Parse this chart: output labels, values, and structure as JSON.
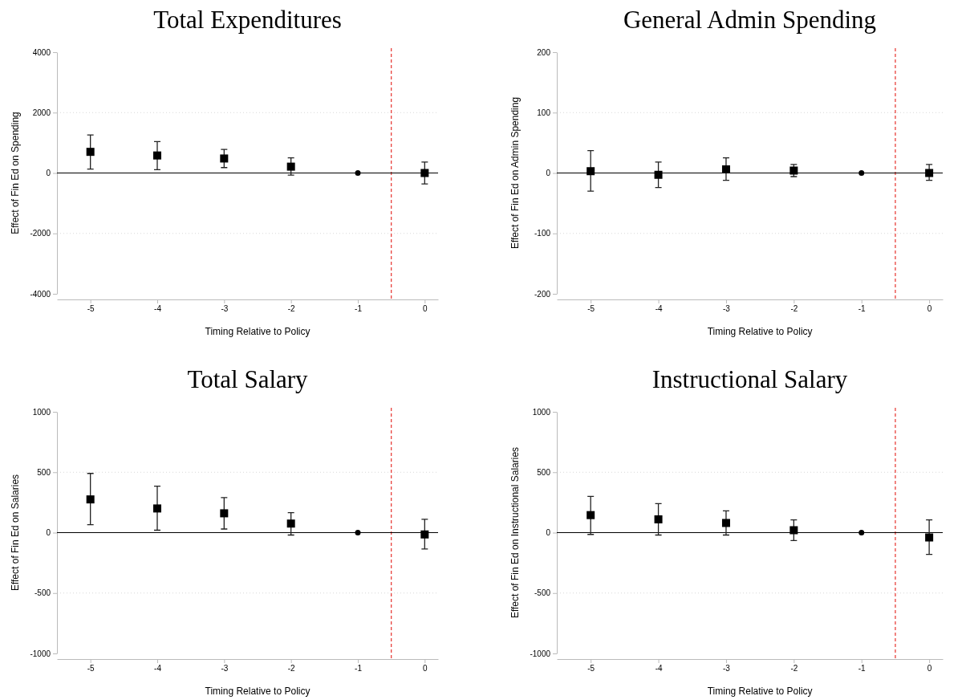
{
  "chart_data": [
    {
      "type": "scatter",
      "title": "Total Expenditures",
      "xlabel": "Timing Relative to Policy",
      "ylabel": "Effect of Fin Ed on Spending",
      "xlim": [
        -5.5,
        0.2
      ],
      "xticks": [
        -5,
        -4,
        -3,
        -2,
        -1,
        0
      ],
      "ylim": [
        -4000,
        4000
      ],
      "yticks": [
        -4000,
        -2000,
        0,
        2000,
        4000
      ],
      "grid": "y",
      "series": [
        {
          "type": "scatter",
          "marker": "square",
          "color": "#000000",
          "x": [
            -5,
            -4,
            -3,
            -2,
            0
          ],
          "values": [
            700,
            580,
            480,
            210,
            0
          ],
          "errors": [
            [
              130,
              1260
            ],
            [
              110,
              1040
            ],
            [
              180,
              780
            ],
            [
              -70,
              500
            ],
            [
              -360,
              360
            ]
          ]
        },
        {
          "type": "scatter",
          "marker": "circle",
          "color": "#000000",
          "x": [
            -1
          ],
          "values": [
            0
          ]
        }
      ],
      "ref_lines": [
        {
          "axis": "x",
          "value": -0.5,
          "color": "#e8413c",
          "line_style": "dashed"
        },
        {
          "axis": "y",
          "value": 0,
          "color": "#000000",
          "line_style": "solid"
        }
      ]
    },
    {
      "type": "scatter",
      "title": "General Admin Spending",
      "xlabel": "Timing Relative to Policy",
      "ylabel": "Effect of Fin Ed on Admin Spending",
      "xlim": [
        -5.5,
        0.2
      ],
      "xticks": [
        -5,
        -4,
        -3,
        -2,
        -1,
        0
      ],
      "ylim": [
        -200,
        200
      ],
      "yticks": [
        -200,
        -100,
        0,
        100,
        200
      ],
      "grid": "y",
      "series": [
        {
          "type": "scatter",
          "marker": "square",
          "color": "#000000",
          "x": [
            -5,
            -4,
            -3,
            -2,
            0
          ],
          "values": [
            3,
            -3,
            6,
            4,
            0
          ],
          "errors": [
            [
              -30,
              37
            ],
            [
              -24,
              18
            ],
            [
              -12,
              25
            ],
            [
              -6,
              14
            ],
            [
              -12,
              14
            ]
          ]
        },
        {
          "type": "scatter",
          "marker": "circle",
          "color": "#000000",
          "x": [
            -1
          ],
          "values": [
            0
          ]
        }
      ],
      "ref_lines": [
        {
          "axis": "x",
          "value": -0.5,
          "color": "#e8413c",
          "line_style": "dashed"
        },
        {
          "axis": "y",
          "value": 0,
          "color": "#000000",
          "line_style": "solid"
        }
      ]
    },
    {
      "type": "scatter",
      "title": "Total Salary",
      "xlabel": "Timing Relative to Policy",
      "ylabel": "Effect of Fin Ed on Salaries",
      "xlim": [
        -5.5,
        0.2
      ],
      "xticks": [
        -5,
        -4,
        -3,
        -2,
        -1,
        0
      ],
      "ylim": [
        -1000,
        1000
      ],
      "yticks": [
        -1000,
        -500,
        0,
        500,
        1000
      ],
      "grid": "y",
      "series": [
        {
          "type": "scatter",
          "marker": "square",
          "color": "#000000",
          "x": [
            -5,
            -4,
            -3,
            -2,
            0
          ],
          "values": [
            275,
            200,
            160,
            75,
            -15
          ],
          "errors": [
            [
              65,
              490
            ],
            [
              20,
              385
            ],
            [
              30,
              290
            ],
            [
              -20,
              165
            ],
            [
              -135,
              110
            ]
          ]
        },
        {
          "type": "scatter",
          "marker": "circle",
          "color": "#000000",
          "x": [
            -1
          ],
          "values": [
            0
          ]
        }
      ],
      "ref_lines": [
        {
          "axis": "x",
          "value": -0.5,
          "color": "#e8413c",
          "line_style": "dashed"
        },
        {
          "axis": "y",
          "value": 0,
          "color": "#000000",
          "line_style": "solid"
        }
      ]
    },
    {
      "type": "scatter",
      "title": "Instructional Salary",
      "xlabel": "Timing Relative to Policy",
      "ylabel": "Effect of Fin Ed on Instructional Salaries",
      "xlim": [
        -5.5,
        0.2
      ],
      "xticks": [
        -5,
        -4,
        -3,
        -2,
        -1,
        0
      ],
      "ylim": [
        -1000,
        1000
      ],
      "yticks": [
        -1000,
        -500,
        0,
        500,
        1000
      ],
      "grid": "y",
      "series": [
        {
          "type": "scatter",
          "marker": "square",
          "color": "#000000",
          "x": [
            -5,
            -4,
            -3,
            -2,
            0
          ],
          "values": [
            145,
            110,
            80,
            20,
            -40
          ],
          "errors": [
            [
              -15,
              300
            ],
            [
              -20,
              240
            ],
            [
              -20,
              180
            ],
            [
              -65,
              105
            ],
            [
              -180,
              105
            ]
          ]
        },
        {
          "type": "scatter",
          "marker": "circle",
          "color": "#000000",
          "x": [
            -1
          ],
          "values": [
            0
          ]
        }
      ],
      "ref_lines": [
        {
          "axis": "x",
          "value": -0.5,
          "color": "#e8413c",
          "line_style": "dashed"
        },
        {
          "axis": "y",
          "value": 0,
          "color": "#000000",
          "line_style": "solid"
        }
      ]
    }
  ]
}
